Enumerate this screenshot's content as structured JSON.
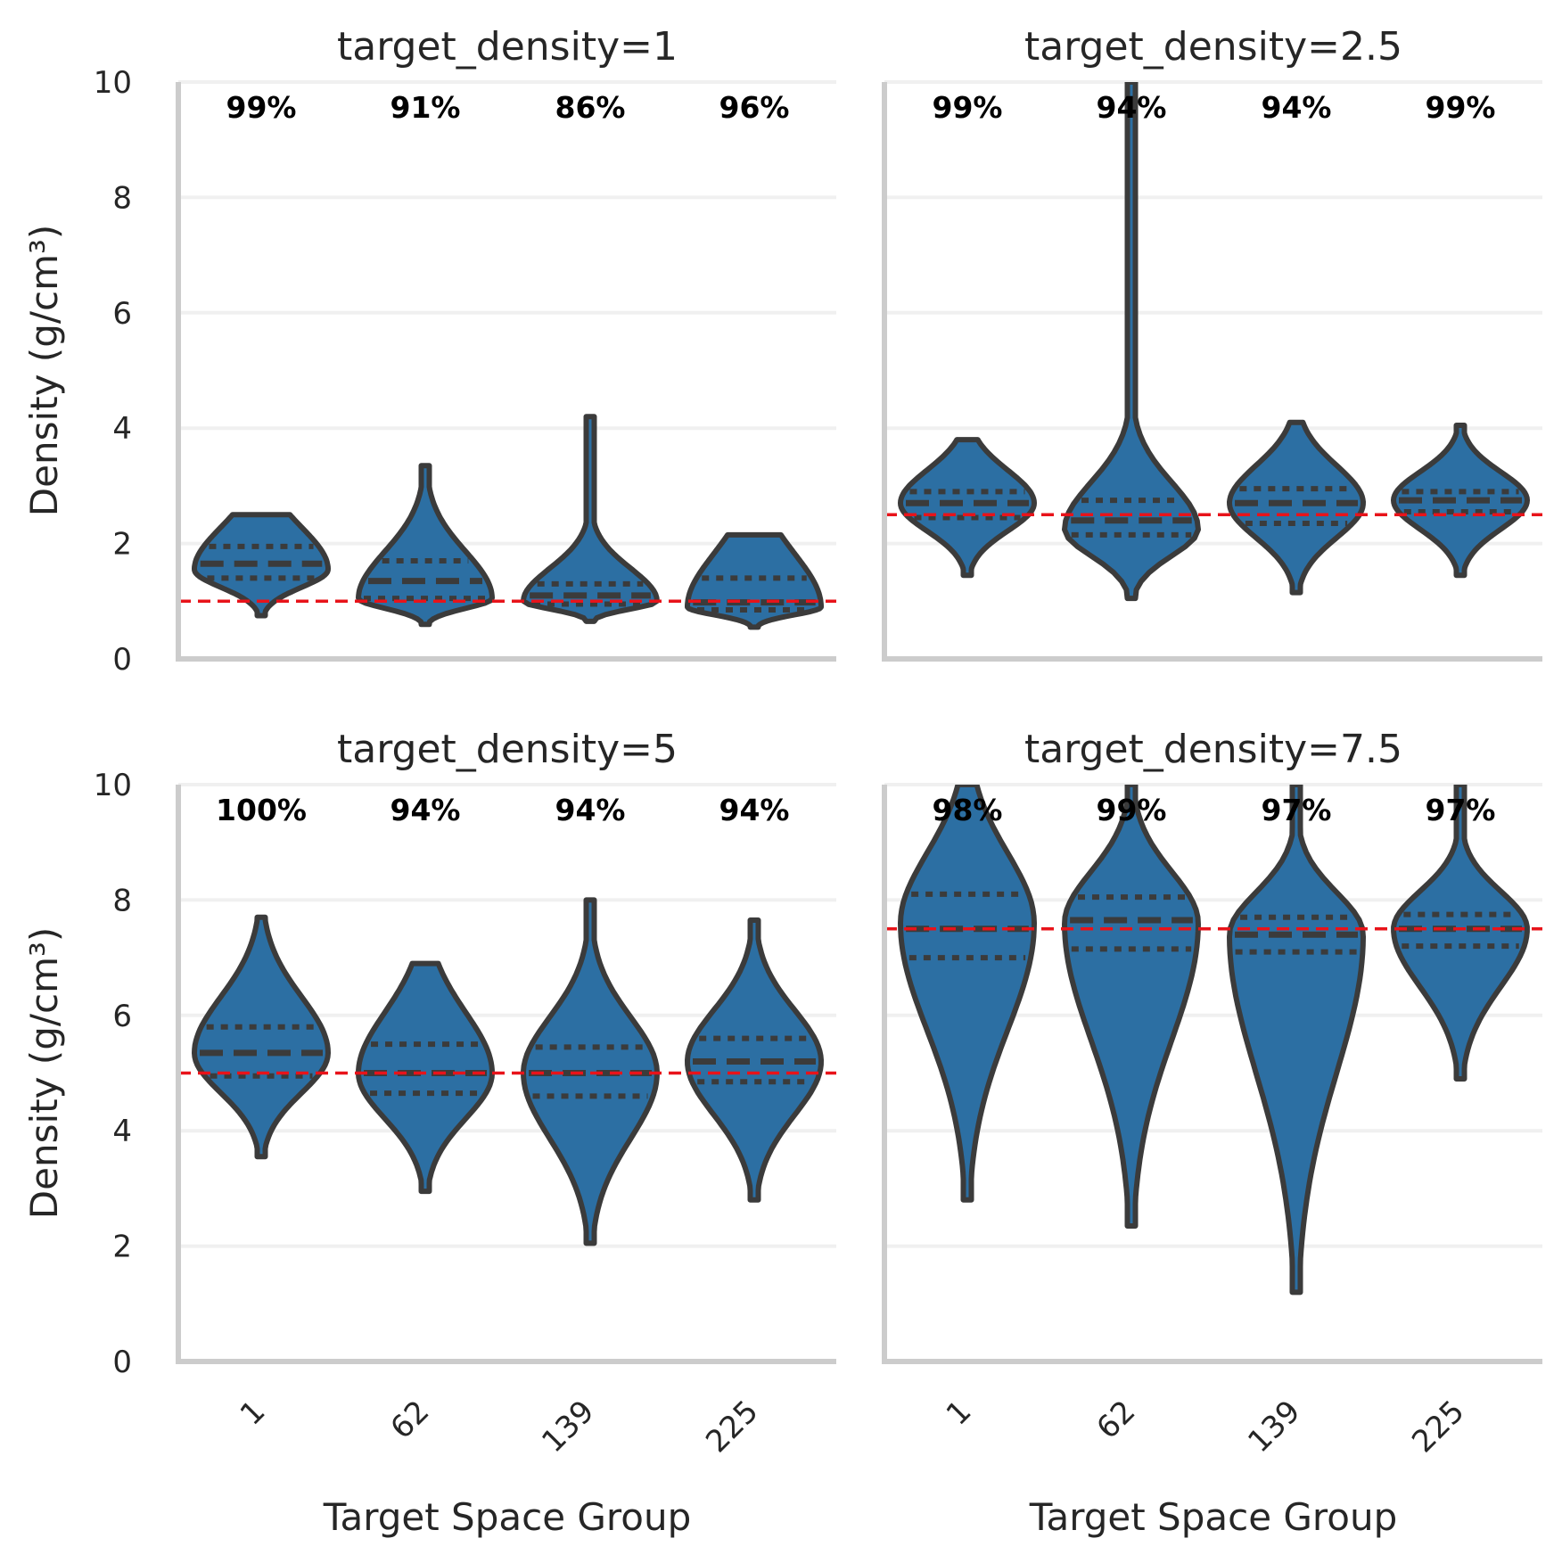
{
  "chart_data": {
    "type": "violin",
    "figure": "facet grid of violin plots",
    "ylabel": "Density (g/cm³)",
    "xlabel": "Target Space Group",
    "ylim": [
      0,
      10
    ],
    "yticks": [
      0,
      2,
      4,
      6,
      8,
      10
    ],
    "categories": [
      "1",
      "62",
      "139",
      "225"
    ],
    "facets": [
      {
        "title": "target_density=1",
        "target": 1,
        "percent_labels": [
          "99%",
          "91%",
          "86%",
          "96%"
        ],
        "violins": [
          {
            "category": "1",
            "min": 0.75,
            "max": 2.5,
            "q1": 1.4,
            "median": 1.65,
            "q3": 1.95,
            "peak": 1.55
          },
          {
            "category": "62",
            "min": 0.6,
            "max": 3.35,
            "q1": 1.05,
            "median": 1.35,
            "q3": 1.7,
            "peak": 1.05
          },
          {
            "category": "139",
            "min": 0.65,
            "max": 4.2,
            "q1": 0.95,
            "median": 1.1,
            "q3": 1.3,
            "peak": 1.0
          },
          {
            "category": "225",
            "min": 0.55,
            "max": 2.15,
            "q1": 0.85,
            "median": 0.98,
            "q3": 1.4,
            "peak": 0.9
          }
        ]
      },
      {
        "title": "target_density=2.5",
        "target": 2.5,
        "percent_labels": [
          "99%",
          "94%",
          "94%",
          "99%"
        ],
        "violins": [
          {
            "category": "1",
            "min": 1.45,
            "max": 3.8,
            "q1": 2.45,
            "median": 2.7,
            "q3": 2.9,
            "peak": 2.7
          },
          {
            "category": "62",
            "min": 1.05,
            "max": 10.0,
            "q1": 2.15,
            "median": 2.4,
            "q3": 2.75,
            "peak": 2.25
          },
          {
            "category": "139",
            "min": 1.15,
            "max": 4.1,
            "q1": 2.35,
            "median": 2.7,
            "q3": 2.95,
            "peak": 2.7
          },
          {
            "category": "225",
            "min": 1.45,
            "max": 4.05,
            "q1": 2.55,
            "median": 2.75,
            "q3": 2.9,
            "peak": 2.75
          }
        ]
      },
      {
        "title": "target_density=5",
        "target": 5,
        "percent_labels": [
          "100%",
          "94%",
          "94%",
          "94%"
        ],
        "violins": [
          {
            "category": "1",
            "min": 3.55,
            "max": 7.7,
            "q1": 4.95,
            "median": 5.35,
            "q3": 5.8,
            "peak": 5.35
          },
          {
            "category": "62",
            "min": 2.95,
            "max": 6.9,
            "q1": 4.65,
            "median": 5.0,
            "q3": 5.5,
            "peak": 5.0
          },
          {
            "category": "139",
            "min": 2.05,
            "max": 8.0,
            "q1": 4.6,
            "median": 5.0,
            "q3": 5.45,
            "peak": 5.0
          },
          {
            "category": "225",
            "min": 2.8,
            "max": 7.65,
            "q1": 4.85,
            "median": 5.2,
            "q3": 5.6,
            "peak": 5.2
          }
        ]
      },
      {
        "title": "target_density=7.5",
        "target": 7.5,
        "percent_labels": [
          "98%",
          "99%",
          "97%",
          "97%"
        ],
        "violins": [
          {
            "category": "1",
            "min": 2.8,
            "max": 10.0,
            "q1": 7.0,
            "median": 7.5,
            "q3": 8.1,
            "peak": 7.6
          },
          {
            "category": "62",
            "min": 2.35,
            "max": 10.0,
            "q1": 7.15,
            "median": 7.65,
            "q3": 8.05,
            "peak": 7.6
          },
          {
            "category": "139",
            "min": 1.2,
            "max": 10.0,
            "q1": 7.1,
            "median": 7.4,
            "q3": 7.7,
            "peak": 7.4
          },
          {
            "category": "225",
            "min": 4.9,
            "max": 10.0,
            "q1": 7.2,
            "median": 7.5,
            "q3": 7.75,
            "peak": 7.5
          }
        ]
      }
    ]
  },
  "colors": {
    "violin_fill": "#2c6fa3",
    "violin_edge": "#3b3b3b",
    "target_line": "#e8131a",
    "grid": "#f0f0f0",
    "spine": "#cccccc"
  }
}
